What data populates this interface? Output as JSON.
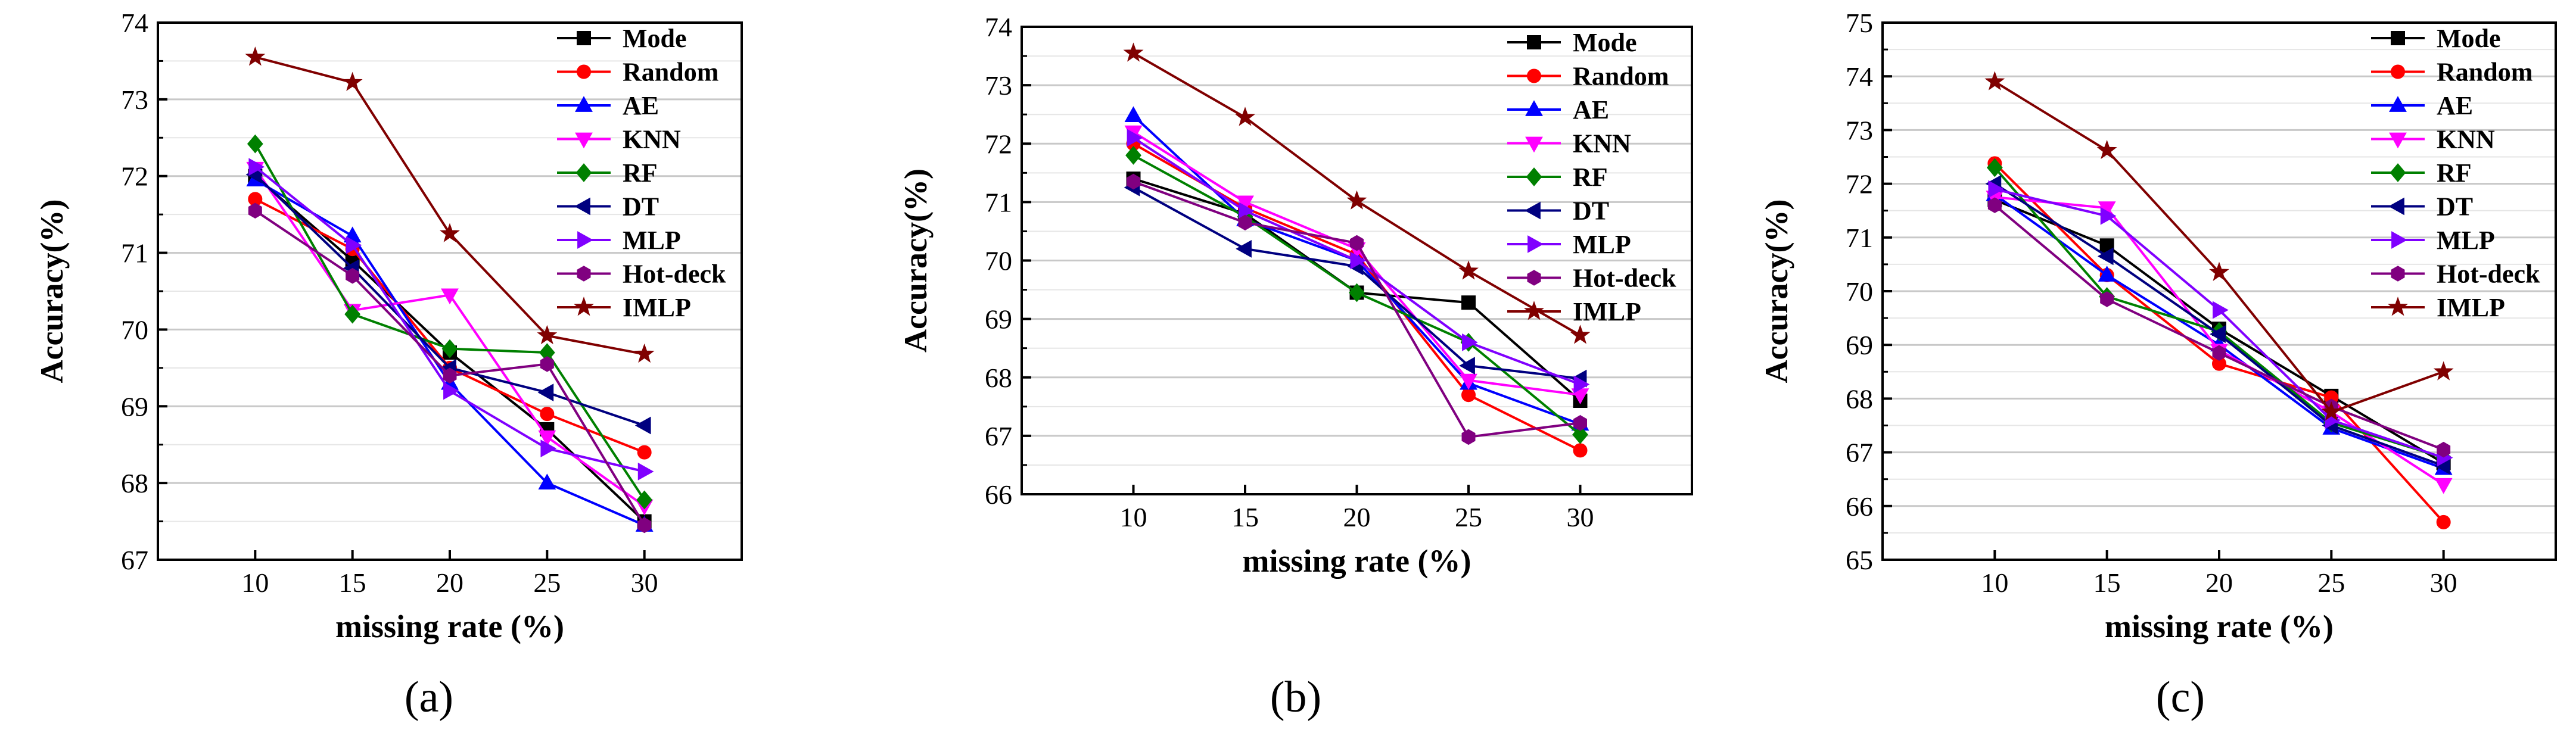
{
  "chart_data": [
    {
      "type": "line",
      "caption": "(a)",
      "xlabel": "missing rate (%)",
      "ylabel": "Accuracy(%)",
      "x": [
        10,
        15,
        20,
        25,
        30
      ],
      "xticks": [
        10,
        15,
        20,
        25,
        30
      ],
      "xlim": [
        5,
        35
      ],
      "ylim": [
        67,
        74
      ],
      "yticks": [
        67,
        68,
        69,
        70,
        71,
        72,
        73,
        74
      ],
      "grid": true,
      "legend_position": "top-right",
      "series": [
        {
          "name": "Mode",
          "color": "#000000",
          "marker": "square",
          "values": [
            72.0,
            70.9,
            69.7,
            68.7,
            67.5
          ]
        },
        {
          "name": "Random",
          "color": "#ff0000",
          "marker": "circle",
          "values": [
            71.7,
            71.05,
            69.5,
            68.9,
            68.4
          ]
        },
        {
          "name": "AE",
          "color": "#0000ff",
          "marker": "triangle-up",
          "values": [
            71.95,
            71.22,
            69.3,
            68.0,
            67.45
          ]
        },
        {
          "name": "KNN",
          "color": "#ff00ff",
          "marker": "triangle-down",
          "values": [
            72.1,
            70.25,
            70.45,
            68.6,
            67.7
          ]
        },
        {
          "name": "RF",
          "color": "#008000",
          "marker": "diamond",
          "values": [
            72.42,
            70.2,
            69.75,
            69.7,
            67.78
          ]
        },
        {
          "name": "DT",
          "color": "#000080",
          "marker": "triangle-left",
          "values": [
            72.02,
            70.8,
            69.5,
            69.18,
            68.75
          ]
        },
        {
          "name": "MLP",
          "color": "#8000ff",
          "marker": "triangle-right",
          "values": [
            72.12,
            71.1,
            69.2,
            68.45,
            68.15
          ]
        },
        {
          "name": "Hot-deck",
          "color": "#800080",
          "marker": "hexagon",
          "values": [
            71.55,
            70.7,
            69.4,
            69.55,
            67.45
          ]
        },
        {
          "name": "IMLP",
          "color": "#800000",
          "marker": "star",
          "values": [
            73.55,
            73.22,
            71.25,
            69.92,
            69.68
          ]
        }
      ]
    },
    {
      "type": "line",
      "caption": "(b)",
      "xlabel": "missing rate (%)",
      "ylabel": "Accuracy(%)",
      "x": [
        10,
        15,
        20,
        25,
        30
      ],
      "xticks": [
        10,
        15,
        20,
        25,
        30
      ],
      "xlim": [
        5,
        35
      ],
      "ylim": [
        66,
        74
      ],
      "yticks": [
        66,
        67,
        68,
        69,
        70,
        71,
        72,
        73,
        74
      ],
      "grid": true,
      "legend_position": "top-right",
      "series": [
        {
          "name": "Mode",
          "color": "#000000",
          "marker": "square",
          "values": [
            71.4,
            70.8,
            69.45,
            69.28,
            67.6
          ]
        },
        {
          "name": "Random",
          "color": "#ff0000",
          "marker": "circle",
          "values": [
            72.0,
            70.9,
            70.1,
            67.7,
            66.75
          ]
        },
        {
          "name": "AE",
          "color": "#0000ff",
          "marker": "triangle-up",
          "values": [
            72.48,
            70.7,
            70.0,
            67.9,
            67.2
          ]
        },
        {
          "name": "KNN",
          "color": "#ff00ff",
          "marker": "triangle-down",
          "values": [
            72.2,
            71.0,
            70.2,
            67.95,
            67.7
          ]
        },
        {
          "name": "RF",
          "color": "#008000",
          "marker": "diamond",
          "values": [
            71.8,
            70.75,
            69.45,
            68.6,
            67.02
          ]
        },
        {
          "name": "DT",
          "color": "#000080",
          "marker": "triangle-left",
          "values": [
            71.25,
            70.2,
            69.9,
            68.2,
            67.98
          ]
        },
        {
          "name": "MLP",
          "color": "#8000ff",
          "marker": "triangle-right",
          "values": [
            72.1,
            70.85,
            70.0,
            68.6,
            67.88
          ]
        },
        {
          "name": "Hot-deck",
          "color": "#800080",
          "marker": "hexagon",
          "values": [
            71.35,
            70.65,
            70.3,
            66.98,
            67.22
          ]
        },
        {
          "name": "IMLP",
          "color": "#800000",
          "marker": "star",
          "values": [
            73.55,
            72.45,
            71.02,
            69.82,
            68.72
          ]
        }
      ]
    },
    {
      "type": "line",
      "caption": "(c)",
      "xlabel": "missing rate (%)",
      "ylabel": "Accuracy(%)",
      "x": [
        10,
        15,
        20,
        25,
        30
      ],
      "xticks": [
        10,
        15,
        20,
        25,
        30
      ],
      "xlim": [
        5,
        35
      ],
      "ylim": [
        65,
        75
      ],
      "yticks": [
        65,
        66,
        67,
        68,
        69,
        70,
        71,
        72,
        73,
        74,
        75
      ],
      "grid": true,
      "legend_position": "top-right",
      "series": [
        {
          "name": "Mode",
          "color": "#000000",
          "marker": "square",
          "values": [
            71.7,
            70.85,
            69.3,
            68.05,
            66.8
          ]
        },
        {
          "name": "Random",
          "color": "#ff0000",
          "marker": "circle",
          "values": [
            72.38,
            70.3,
            68.65,
            68.02,
            65.7
          ]
        },
        {
          "name": "AE",
          "color": "#0000ff",
          "marker": "triangle-up",
          "values": [
            71.8,
            70.3,
            69.0,
            67.45,
            66.7
          ]
        },
        {
          "name": "KNN",
          "color": "#ff00ff",
          "marker": "triangle-down",
          "values": [
            71.75,
            71.55,
            68.9,
            67.75,
            66.4
          ]
        },
        {
          "name": "RF",
          "color": "#008000",
          "marker": "diamond",
          "values": [
            72.3,
            69.9,
            69.25,
            67.55,
            66.9
          ]
        },
        {
          "name": "DT",
          "color": "#000080",
          "marker": "triangle-left",
          "values": [
            72.0,
            70.65,
            69.2,
            67.5,
            66.75
          ]
        },
        {
          "name": "MLP",
          "color": "#8000ff",
          "marker": "triangle-right",
          "values": [
            71.9,
            71.4,
            69.65,
            67.6,
            66.9
          ]
        },
        {
          "name": "Hot-deck",
          "color": "#800080",
          "marker": "hexagon",
          "values": [
            71.6,
            69.85,
            68.85,
            67.85,
            67.05
          ]
        },
        {
          "name": "IMLP",
          "color": "#800000",
          "marker": "star",
          "values": [
            73.9,
            72.62,
            70.35,
            67.75,
            68.5
          ]
        }
      ]
    }
  ]
}
